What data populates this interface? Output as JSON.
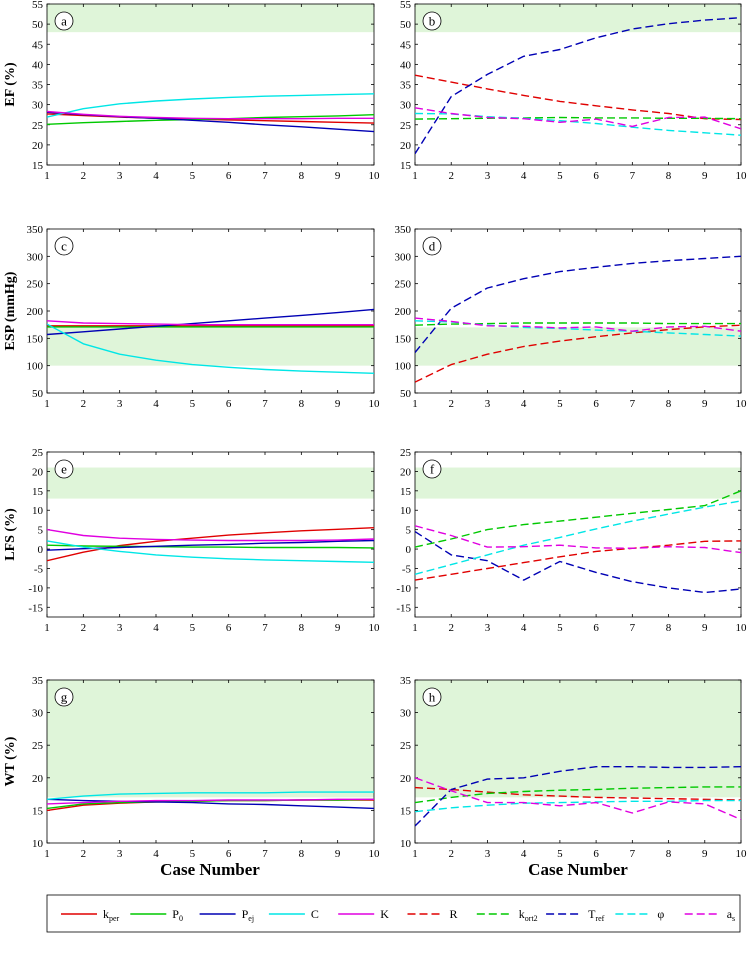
{
  "colors": {
    "k_per": "#e00000",
    "P0": "#00c800",
    "P_ej": "#0000b4",
    "C": "#00e6e6",
    "K": "#e000e0",
    "band": "#dff5d9"
  },
  "xlabel": "Case Number",
  "legend": [
    {
      "key": "k_per",
      "base": "k",
      "sub": "per",
      "dash": false
    },
    {
      "key": "P0",
      "base": "P",
      "sub": "0",
      "dash": false
    },
    {
      "key": "P_ej",
      "base": "P",
      "sub": "ej",
      "dash": false
    },
    {
      "key": "C",
      "base": "C",
      "sub": "",
      "dash": false
    },
    {
      "key": "K",
      "base": "K",
      "sub": "",
      "dash": false
    },
    {
      "key": "k_per",
      "base": "R",
      "sub": "",
      "dash": true
    },
    {
      "key": "P0",
      "base": "k",
      "sub": "ort2",
      "dash": true
    },
    {
      "key": "P_ej",
      "base": "T",
      "sub": "ref",
      "dash": true
    },
    {
      "key": "C",
      "base": "φ",
      "sub": "",
      "dash": true
    },
    {
      "key": "K",
      "base": "a",
      "sub": "s",
      "dash": true
    }
  ],
  "chart_data": [
    {
      "panel": "a",
      "type": "line",
      "ylabel": "EF (%)",
      "xlim": [
        1,
        10
      ],
      "ylim": [
        15,
        55
      ],
      "yticks": [
        15,
        20,
        25,
        30,
        35,
        40,
        45,
        50,
        55
      ],
      "band": [
        48,
        55
      ],
      "x": [
        1,
        2,
        3,
        4,
        5,
        6,
        7,
        8,
        9,
        10
      ],
      "series": [
        {
          "name": "k_per",
          "color": "k_per",
          "dash": false,
          "values": [
            27.7,
            27.3,
            26.9,
            26.6,
            26.4,
            26.2,
            26.0,
            25.8,
            25.6,
            25.4
          ]
        },
        {
          "name": "P0",
          "color": "P0",
          "dash": false,
          "values": [
            25.1,
            25.5,
            25.8,
            26.1,
            26.3,
            26.5,
            26.8,
            27.0,
            27.2,
            27.5
          ]
        },
        {
          "name": "P_ej",
          "color": "P_ej",
          "dash": false,
          "values": [
            28.1,
            27.5,
            27.0,
            26.6,
            26.1,
            25.6,
            25.0,
            24.5,
            23.9,
            23.3
          ]
        },
        {
          "name": "C",
          "color": "C",
          "dash": false,
          "values": [
            26.9,
            29.0,
            30.2,
            30.9,
            31.4,
            31.8,
            32.1,
            32.3,
            32.5,
            32.7
          ]
        },
        {
          "name": "K",
          "color": "K",
          "dash": false,
          "values": [
            28.3,
            27.6,
            27.1,
            26.8,
            26.6,
            26.5,
            26.5,
            26.5,
            26.6,
            26.6
          ]
        }
      ]
    },
    {
      "panel": "b",
      "type": "line",
      "ylabel": "",
      "xlim": [
        1,
        10
      ],
      "ylim": [
        15,
        55
      ],
      "yticks": [
        15,
        20,
        25,
        30,
        35,
        40,
        45,
        50,
        55
      ],
      "band": [
        48,
        55
      ],
      "x": [
        1,
        2,
        3,
        4,
        5,
        6,
        7,
        8,
        9,
        10
      ],
      "series": [
        {
          "name": "R",
          "color": "k_per",
          "dash": true,
          "values": [
            37.3,
            35.6,
            33.9,
            32.3,
            30.8,
            29.7,
            28.7,
            27.8,
            26.5,
            26.3
          ]
        },
        {
          "name": "k_ort2",
          "color": "P0",
          "dash": true,
          "values": [
            26.4,
            26.5,
            26.6,
            26.7,
            26.8,
            26.7,
            26.7,
            26.6,
            26.6,
            26.5
          ]
        },
        {
          "name": "T_ref",
          "color": "P_ej",
          "dash": true,
          "values": [
            17.8,
            32.0,
            37.5,
            42.0,
            43.7,
            46.6,
            48.8,
            50.1,
            51.0,
            51.6
          ]
        },
        {
          "name": "phi",
          "color": "C",
          "dash": true,
          "values": [
            27.8,
            27.7,
            27.0,
            26.6,
            26.0,
            25.3,
            24.4,
            23.6,
            23.0,
            22.4
          ]
        },
        {
          "name": "a_s",
          "color": "K",
          "dash": true,
          "values": [
            29.2,
            27.8,
            26.8,
            26.5,
            25.6,
            26.4,
            24.6,
            26.8,
            26.9,
            24.0
          ]
        }
      ]
    },
    {
      "panel": "c",
      "type": "line",
      "ylabel": "ESP (mmHg)",
      "xlim": [
        1,
        10
      ],
      "ylim": [
        50,
        350
      ],
      "yticks": [
        50,
        100,
        150,
        200,
        250,
        300,
        350
      ],
      "band": [
        100,
        170
      ],
      "x": [
        1,
        2,
        3,
        4,
        5,
        6,
        7,
        8,
        9,
        10
      ],
      "series": [
        {
          "name": "k_per",
          "color": "k_per",
          "dash": false,
          "values": [
            173,
            173,
            173,
            173,
            173,
            173,
            173,
            173,
            173,
            173
          ]
        },
        {
          "name": "P0",
          "color": "P0",
          "dash": false,
          "values": [
            171,
            171,
            171,
            171,
            171,
            171,
            171,
            171,
            171,
            171
          ]
        },
        {
          "name": "P_ej",
          "color": "P_ej",
          "dash": false,
          "values": [
            157,
            162,
            167,
            172,
            177,
            182,
            187,
            192,
            197,
            203
          ]
        },
        {
          "name": "C",
          "color": "C",
          "dash": false,
          "values": [
            176,
            140,
            121,
            110,
            102,
            97,
            93,
            90,
            88,
            86
          ]
        },
        {
          "name": "K",
          "color": "K",
          "dash": false,
          "values": [
            182,
            178,
            177,
            176,
            175,
            175,
            175,
            175,
            175,
            175
          ]
        }
      ]
    },
    {
      "panel": "d",
      "type": "line",
      "ylabel": "",
      "xlim": [
        1,
        10
      ],
      "ylim": [
        50,
        350
      ],
      "yticks": [
        50,
        100,
        150,
        200,
        250,
        300,
        350
      ],
      "band": [
        100,
        170
      ],
      "x": [
        1,
        2,
        3,
        4,
        5,
        6,
        7,
        8,
        9,
        10
      ],
      "series": [
        {
          "name": "R",
          "color": "k_per",
          "dash": true,
          "values": [
            70,
            102,
            121,
            135,
            145,
            153,
            160,
            166,
            171,
            174
          ]
        },
        {
          "name": "k_ort2",
          "color": "P0",
          "dash": true,
          "values": [
            174,
            176,
            177,
            178,
            178,
            178,
            178,
            177,
            177,
            177
          ]
        },
        {
          "name": "T_ref",
          "color": "P_ej",
          "dash": true,
          "values": [
            124,
            205,
            242,
            259,
            272,
            280,
            287,
            292,
            296,
            300
          ]
        },
        {
          "name": "phi",
          "color": "C",
          "dash": true,
          "values": [
            182,
            180,
            174,
            170,
            168,
            165,
            163,
            160,
            157,
            154
          ]
        },
        {
          "name": "a_s",
          "color": "K",
          "dash": true,
          "values": [
            187,
            181,
            173,
            172,
            169,
            171,
            163,
            171,
            172,
            163
          ]
        }
      ]
    },
    {
      "panel": "e",
      "type": "line",
      "ylabel": "LFS (%)",
      "xlim": [
        1,
        10
      ],
      "ylim": [
        -17.5,
        25
      ],
      "yticks": [
        -15,
        -10,
        -5,
        0,
        5,
        10,
        15,
        20,
        25
      ],
      "band": [
        13,
        21
      ],
      "x": [
        1,
        2,
        3,
        4,
        5,
        6,
        7,
        8,
        9,
        10
      ],
      "series": [
        {
          "name": "k_per",
          "color": "k_per",
          "dash": false,
          "values": [
            -3.0,
            -0.8,
            0.9,
            2.0,
            2.8,
            3.6,
            4.2,
            4.7,
            5.1,
            5.5
          ]
        },
        {
          "name": "P0",
          "color": "P0",
          "dash": false,
          "values": [
            1.0,
            0.8,
            0.7,
            0.6,
            0.5,
            0.5,
            0.4,
            0.4,
            0.4,
            0.3
          ]
        },
        {
          "name": "P_ej",
          "color": "P_ej",
          "dash": false,
          "values": [
            -0.3,
            0.1,
            0.4,
            0.7,
            1.0,
            1.2,
            1.5,
            1.7,
            2.0,
            2.2
          ]
        },
        {
          "name": "C",
          "color": "C",
          "dash": false,
          "values": [
            2.1,
            0.5,
            -0.6,
            -1.5,
            -2.1,
            -2.5,
            -2.8,
            -3.0,
            -3.2,
            -3.4
          ]
        },
        {
          "name": "K",
          "color": "K",
          "dash": false,
          "values": [
            5.0,
            3.5,
            2.8,
            2.5,
            2.3,
            2.2,
            2.2,
            2.2,
            2.3,
            2.6
          ]
        }
      ]
    },
    {
      "panel": "f",
      "type": "line",
      "ylabel": "",
      "xlim": [
        1,
        10
      ],
      "ylim": [
        -17.5,
        25
      ],
      "yticks": [
        -15,
        -10,
        -5,
        0,
        5,
        10,
        15,
        20,
        25
      ],
      "band": [
        13,
        21
      ],
      "x": [
        1,
        2,
        3,
        4,
        5,
        6,
        7,
        8,
        9,
        10
      ],
      "series": [
        {
          "name": "R",
          "color": "k_per",
          "dash": true,
          "values": [
            -8.0,
            -6.5,
            -5.0,
            -3.5,
            -2.0,
            -0.6,
            0.2,
            1.0,
            2.0,
            2.1
          ]
        },
        {
          "name": "k_ort2",
          "color": "P0",
          "dash": true,
          "values": [
            0.5,
            2.6,
            5.0,
            6.3,
            7.2,
            8.2,
            9.2,
            10.2,
            11.2,
            15.0
          ]
        },
        {
          "name": "T_ref",
          "color": "P_ej",
          "dash": true,
          "values": [
            4.5,
            -1.5,
            -3.0,
            -8.0,
            -3.2,
            -6.0,
            -8.4,
            -10.0,
            -11.2,
            -10.3
          ]
        },
        {
          "name": "phi",
          "color": "C",
          "dash": true,
          "values": [
            -6.5,
            -4.0,
            -1.5,
            1.0,
            3.0,
            5.2,
            7.2,
            9.0,
            10.8,
            12.4
          ]
        },
        {
          "name": "a_s",
          "color": "K",
          "dash": true,
          "values": [
            6.0,
            3.5,
            0.5,
            0.6,
            1.0,
            0.3,
            0.2,
            0.6,
            0.4,
            -0.9
          ]
        }
      ]
    },
    {
      "panel": "g",
      "type": "line",
      "ylabel": "WT (%)",
      "xlim": [
        1,
        10
      ],
      "ylim": [
        10,
        35
      ],
      "yticks": [
        10,
        15,
        20,
        25,
        30,
        35
      ],
      "band": [
        17,
        35
      ],
      "x": [
        1,
        2,
        3,
        4,
        5,
        6,
        7,
        8,
        9,
        10
      ],
      "series": [
        {
          "name": "k_per",
          "color": "k_per",
          "dash": false,
          "values": [
            15.0,
            15.8,
            16.1,
            16.3,
            16.4,
            16.5,
            16.5,
            16.6,
            16.6,
            16.6
          ]
        },
        {
          "name": "P0",
          "color": "P0",
          "dash": false,
          "values": [
            15.3,
            16.0,
            16.2,
            16.3,
            16.4,
            16.5,
            16.5,
            16.6,
            16.6,
            16.7
          ]
        },
        {
          "name": "P_ej",
          "color": "P_ej",
          "dash": false,
          "values": [
            16.7,
            16.5,
            16.4,
            16.3,
            16.2,
            16.0,
            15.9,
            15.7,
            15.5,
            15.3
          ]
        },
        {
          "name": "C",
          "color": "C",
          "dash": false,
          "values": [
            16.7,
            17.2,
            17.5,
            17.6,
            17.7,
            17.7,
            17.7,
            17.8,
            17.8,
            17.8
          ]
        },
        {
          "name": "K",
          "color": "K",
          "dash": false,
          "values": [
            16.0,
            16.2,
            16.4,
            16.5,
            16.5,
            16.6,
            16.6,
            16.6,
            16.7,
            16.7
          ]
        }
      ]
    },
    {
      "panel": "h",
      "type": "line",
      "ylabel": "",
      "xlim": [
        1,
        10
      ],
      "ylim": [
        10,
        35
      ],
      "yticks": [
        10,
        15,
        20,
        25,
        30,
        35
      ],
      "band": [
        17,
        35
      ],
      "x": [
        1,
        2,
        3,
        4,
        5,
        6,
        7,
        8,
        9,
        10
      ],
      "series": [
        {
          "name": "R",
          "color": "k_per",
          "dash": true,
          "values": [
            18.5,
            18.2,
            17.8,
            17.4,
            17.2,
            17.0,
            16.9,
            16.8,
            16.7,
            16.6
          ]
        },
        {
          "name": "k_ort2",
          "color": "P0",
          "dash": true,
          "values": [
            16.2,
            17.0,
            17.6,
            17.9,
            18.1,
            18.2,
            18.4,
            18.5,
            18.6,
            18.6
          ]
        },
        {
          "name": "T_ref",
          "color": "P_ej",
          "dash": true,
          "values": [
            12.6,
            18.2,
            19.8,
            20.0,
            21.0,
            21.7,
            21.7,
            21.6,
            21.6,
            21.7
          ]
        },
        {
          "name": "phi",
          "color": "C",
          "dash": true,
          "values": [
            14.8,
            15.4,
            15.8,
            16.1,
            16.2,
            16.3,
            16.4,
            16.4,
            16.5,
            16.5
          ]
        },
        {
          "name": "a_s",
          "color": "K",
          "dash": true,
          "values": [
            20.0,
            18.0,
            16.2,
            16.2,
            15.7,
            16.2,
            14.6,
            16.3,
            16.0,
            13.6
          ]
        }
      ]
    }
  ]
}
